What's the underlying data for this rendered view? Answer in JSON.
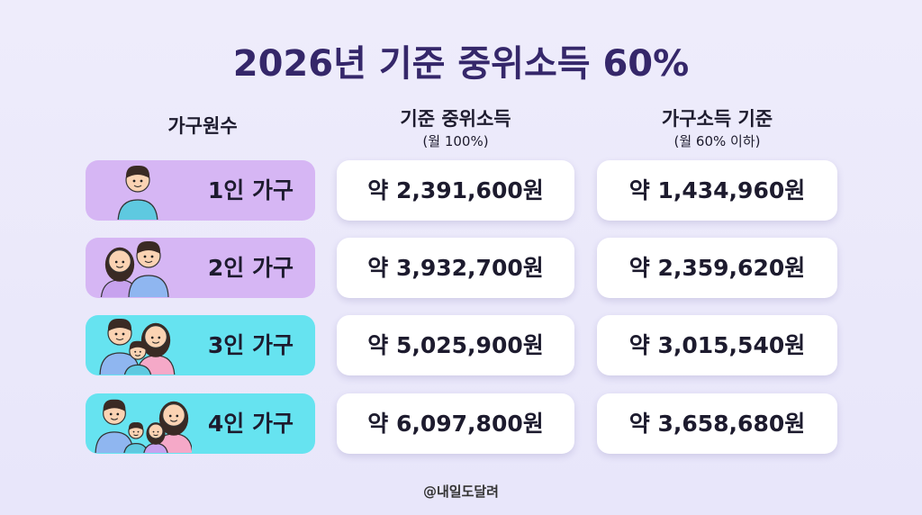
{
  "title": "2026년 기준 중위소득 60%",
  "headers": [
    {
      "label": "가구원수"
    },
    {
      "label": "기준 중위소득",
      "sub": "(월 100%)"
    },
    {
      "label": "가구소득 기준",
      "sub": "(월 60% 이하)"
    }
  ],
  "rows": [
    {
      "household": "1인 가구",
      "median": "약 2,391,600원",
      "threshold": "약 1,434,960원"
    },
    {
      "household": "2인 가구",
      "median": "약 3,932,700원",
      "threshold": "약 2,359,620원"
    },
    {
      "household": "3인 가구",
      "median": "약 5,025,900원",
      "threshold": "약 3,015,540원"
    },
    {
      "household": "4인 가구",
      "median": "약 6,097,800원",
      "threshold": "약 3,658,680원"
    }
  ],
  "footer": "@내일도달려"
}
